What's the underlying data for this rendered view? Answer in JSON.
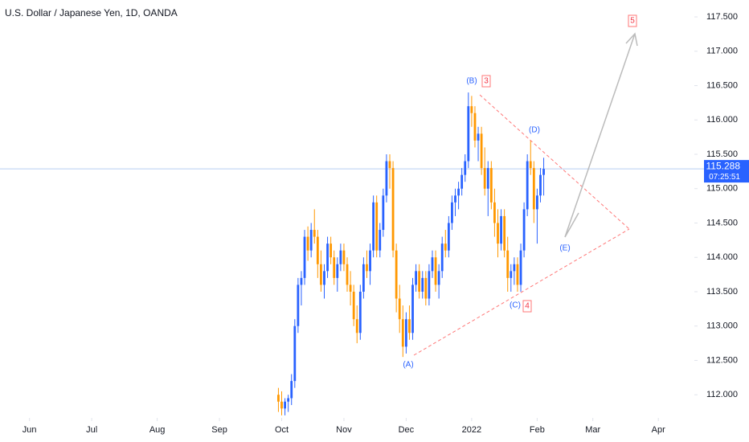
{
  "chart_data": {
    "type": "candlestick",
    "title": "U.S. Dollar / Japanese Yen, 1D, OANDA",
    "up_color": "#2962ff",
    "down_color": "#ff9800",
    "x": [
      85,
      86,
      87,
      88,
      89,
      90,
      91,
      92,
      93,
      94,
      95,
      96,
      97,
      98,
      99,
      100,
      101,
      102,
      103,
      104,
      105,
      106,
      107,
      108,
      109,
      110,
      111,
      112,
      113,
      114,
      115,
      116,
      117,
      118,
      119,
      120,
      121,
      122,
      123,
      124,
      125,
      126,
      127,
      128,
      129,
      130,
      131,
      132,
      133,
      134,
      135,
      136,
      137,
      138,
      139,
      140,
      141,
      142,
      143,
      144,
      145,
      146,
      147,
      148,
      149,
      150,
      151,
      152,
      153,
      154,
      155,
      156,
      157,
      158,
      159,
      160,
      161,
      162,
      163,
      164,
      165,
      166
    ],
    "open": [
      112.0,
      111.9,
      111.8,
      111.9,
      111.95,
      112.2,
      113.0,
      113.6,
      113.7,
      114.3,
      114.1,
      114.4,
      114.3,
      113.9,
      113.6,
      113.8,
      114.2,
      114.0,
      113.7,
      113.9,
      114.1,
      113.9,
      113.6,
      113.5,
      113.1,
      112.9,
      113.5,
      113.9,
      113.8,
      114.1,
      114.8,
      114.1,
      114.4,
      114.9,
      115.4,
      115.3,
      114.1,
      113.4,
      113.1,
      112.7,
      113.1,
      112.9,
      113.6,
      113.8,
      113.5,
      113.7,
      113.4,
      113.8,
      114.0,
      113.6,
      113.8,
      114.2,
      114.1,
      114.5,
      114.8,
      114.9,
      115.0,
      115.2,
      115.4,
      116.2,
      116.1,
      115.7,
      115.8,
      115.3,
      115.0,
      115.3,
      114.8,
      114.5,
      114.2,
      114.6,
      114.1,
      113.7,
      113.8,
      113.9,
      113.6,
      114.1,
      114.7,
      115.4,
      115.3,
      114.7,
      114.9,
      115.2
    ],
    "high": [
      112.1,
      112.05,
      111.95,
      112.0,
      112.3,
      113.1,
      113.7,
      113.8,
      114.4,
      114.45,
      114.5,
      114.7,
      114.4,
      114.1,
      113.9,
      114.3,
      114.3,
      114.1,
      114.0,
      114.2,
      114.2,
      114.0,
      113.8,
      113.6,
      113.3,
      113.6,
      114.0,
      114.1,
      114.2,
      114.9,
      114.9,
      114.5,
      115.0,
      115.5,
      115.5,
      115.4,
      114.2,
      113.6,
      113.3,
      113.2,
      113.3,
      113.7,
      113.9,
      113.9,
      113.8,
      113.8,
      113.9,
      114.1,
      114.1,
      113.9,
      114.3,
      114.4,
      114.6,
      114.9,
      115.0,
      115.1,
      115.3,
      115.5,
      116.4,
      116.35,
      116.2,
      115.9,
      115.9,
      115.6,
      115.4,
      115.4,
      115.0,
      114.7,
      114.7,
      114.7,
      114.3,
      113.9,
      114.0,
      114.0,
      114.2,
      114.8,
      115.5,
      115.7,
      115.4,
      115.0,
      115.3,
      115.45
    ],
    "low": [
      111.75,
      111.7,
      111.7,
      111.75,
      111.85,
      112.1,
      112.9,
      113.3,
      113.6,
      113.95,
      114.0,
      114.2,
      113.7,
      113.5,
      113.4,
      113.7,
      113.9,
      113.6,
      113.5,
      113.8,
      113.8,
      113.5,
      113.3,
      113.0,
      112.75,
      112.8,
      113.4,
      113.7,
      113.6,
      114.0,
      114.0,
      114.0,
      114.3,
      114.8,
      115.0,
      114.0,
      113.2,
      112.9,
      112.55,
      112.6,
      112.8,
      112.8,
      113.5,
      113.4,
      113.4,
      113.3,
      113.3,
      113.7,
      113.5,
      113.4,
      113.7,
      114.0,
      114.0,
      114.4,
      114.6,
      114.7,
      114.9,
      115.1,
      115.3,
      115.9,
      115.6,
      115.4,
      115.2,
      114.9,
      114.6,
      114.7,
      114.3,
      114.0,
      114.1,
      114.0,
      113.5,
      113.5,
      113.6,
      113.5,
      113.5,
      114.0,
      114.6,
      115.2,
      114.5,
      114.2,
      114.8,
      114.9
    ],
    "close": [
      111.9,
      111.8,
      111.9,
      111.95,
      112.2,
      113.0,
      113.6,
      113.7,
      114.3,
      114.1,
      114.4,
      114.3,
      113.9,
      113.6,
      113.8,
      114.2,
      114.0,
      113.7,
      113.9,
      114.1,
      113.9,
      113.6,
      113.5,
      113.1,
      112.9,
      113.5,
      113.9,
      113.8,
      114.1,
      114.8,
      114.1,
      114.4,
      114.9,
      115.4,
      115.3,
      114.1,
      113.4,
      113.1,
      112.7,
      113.1,
      112.9,
      113.6,
      113.8,
      113.5,
      113.7,
      113.4,
      113.8,
      114.0,
      113.6,
      113.8,
      114.2,
      114.1,
      114.5,
      114.8,
      114.9,
      115.0,
      115.2,
      115.4,
      116.2,
      116.1,
      115.7,
      115.8,
      115.3,
      115.0,
      115.3,
      114.8,
      114.5,
      114.2,
      114.6,
      114.1,
      113.7,
      113.8,
      113.9,
      113.6,
      114.1,
      114.7,
      115.4,
      115.3,
      114.7,
      114.9,
      115.2,
      115.288
    ],
    "xlim": [
      0,
      211.5
    ],
    "xticks": [
      {
        "value": 9,
        "label": "Jun"
      },
      {
        "value": 28,
        "label": "Jul"
      },
      {
        "value": 48,
        "label": "Aug"
      },
      {
        "value": 67,
        "label": "Sep"
      },
      {
        "value": 86,
        "label": "Oct"
      },
      {
        "value": 105,
        "label": "Nov"
      },
      {
        "value": 124,
        "label": "Dec"
      },
      {
        "value": 144,
        "label": "2022"
      },
      {
        "value": 164,
        "label": "Feb"
      },
      {
        "value": 181,
        "label": "Mar"
      },
      {
        "value": 201,
        "label": "Apr"
      }
    ],
    "ylim": [
      111.71,
      117.746
    ],
    "yticks": [
      {
        "value": 112,
        "label": "112.000"
      },
      {
        "value": 112.5,
        "label": "112.500"
      },
      {
        "value": 113,
        "label": "113.000"
      },
      {
        "value": 113.5,
        "label": "113.500"
      },
      {
        "value": 114,
        "label": "114.000"
      },
      {
        "value": 114.5,
        "label": "114.500"
      },
      {
        "value": 115,
        "label": "115.000"
      },
      {
        "value": 115.5,
        "label": "115.500"
      },
      {
        "value": 116,
        "label": "116.000"
      },
      {
        "value": 116.5,
        "label": "116.500"
      },
      {
        "value": 117,
        "label": "117.000"
      },
      {
        "value": 117.5,
        "label": "117.500"
      }
    ],
    "last_price": 115.288,
    "countdown": "07:25:51",
    "annotations": [
      "(A)",
      "(B)",
      "3",
      "(C)",
      "4",
      "(D)",
      "(E)",
      "5"
    ]
  }
}
